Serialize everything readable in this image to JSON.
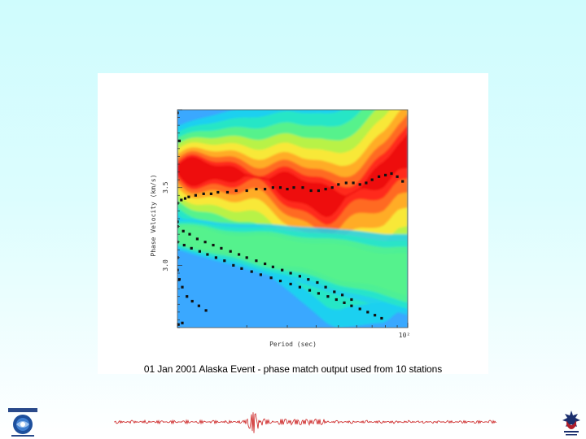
{
  "caption": "01 Jan 2001 Alaska Event - phase match output used from 10 stations",
  "chart_data": {
    "type": "heatmap",
    "title": "",
    "xlabel": "Period (sec)",
    "ylabel": "Phase Velocity (km/s)",
    "x_scale": "log",
    "xlim": [
      10,
      100
    ],
    "ylim": [
      2.6,
      4.0
    ],
    "x_ticks": [
      {
        "value": 100,
        "label": "10²"
      }
    ],
    "y_ticks": [
      {
        "value": 3.5,
        "label": "3.5"
      },
      {
        "value": 3.0,
        "label": "3.0"
      }
    ],
    "colormap": [
      "#3aa8ff",
      "#1ed0f0",
      "#28e6c6",
      "#56f28c",
      "#b8f246",
      "#f8e838",
      "#ffac26",
      "#ff6a20",
      "#ff2a1e",
      "#ee0808"
    ],
    "ridge_series": [
      {
        "x": [
          10,
          15,
          20,
          25,
          30,
          35,
          40,
          45,
          50,
          55,
          60,
          70,
          80,
          90,
          100
        ],
        "y": [
          3.62,
          3.6,
          3.58,
          3.55,
          3.52,
          3.48,
          3.45,
          3.42,
          3.42,
          3.45,
          3.48,
          3.55,
          3.6,
          3.7,
          3.75
        ]
      },
      {
        "x": [
          10,
          15,
          20,
          25,
          30,
          40,
          50,
          60,
          70,
          80,
          90,
          100
        ],
        "y": [
          3.2,
          3.15,
          3.12,
          3.1,
          3.08,
          3.05,
          3.02,
          3.0,
          2.98,
          2.96,
          2.95,
          2.94
        ]
      }
    ],
    "points": [
      {
        "x": 10.0,
        "y": 3.4
      },
      {
        "x": 10.4,
        "y": 3.42
      },
      {
        "x": 10.8,
        "y": 3.43
      },
      {
        "x": 11.2,
        "y": 3.44
      },
      {
        "x": 12.0,
        "y": 3.45
      },
      {
        "x": 13.0,
        "y": 3.46
      },
      {
        "x": 14.0,
        "y": 3.46
      },
      {
        "x": 15.0,
        "y": 3.47
      },
      {
        "x": 16.5,
        "y": 3.47
      },
      {
        "x": 18.0,
        "y": 3.48
      },
      {
        "x": 20.0,
        "y": 3.48
      },
      {
        "x": 22.0,
        "y": 3.49
      },
      {
        "x": 24.0,
        "y": 3.49
      },
      {
        "x": 26.0,
        "y": 3.5
      },
      {
        "x": 28.0,
        "y": 3.5
      },
      {
        "x": 30.0,
        "y": 3.49
      },
      {
        "x": 32.0,
        "y": 3.5
      },
      {
        "x": 35.0,
        "y": 3.5
      },
      {
        "x": 38.0,
        "y": 3.48
      },
      {
        "x": 41.0,
        "y": 3.48
      },
      {
        "x": 44.0,
        "y": 3.49
      },
      {
        "x": 47.0,
        "y": 3.5
      },
      {
        "x": 50.0,
        "y": 3.52
      },
      {
        "x": 54.0,
        "y": 3.53
      },
      {
        "x": 58.0,
        "y": 3.53
      },
      {
        "x": 62.0,
        "y": 3.52
      },
      {
        "x": 66.0,
        "y": 3.53
      },
      {
        "x": 70.0,
        "y": 3.55
      },
      {
        "x": 75.0,
        "y": 3.57
      },
      {
        "x": 80.0,
        "y": 3.58
      },
      {
        "x": 85.0,
        "y": 3.59
      },
      {
        "x": 90.0,
        "y": 3.57
      },
      {
        "x": 95.0,
        "y": 3.54
      },
      {
        "x": 10.0,
        "y": 3.25
      },
      {
        "x": 10.6,
        "y": 3.22
      },
      {
        "x": 11.3,
        "y": 3.2
      },
      {
        "x": 12.2,
        "y": 3.17
      },
      {
        "x": 13.2,
        "y": 3.15
      },
      {
        "x": 14.3,
        "y": 3.13
      },
      {
        "x": 15.5,
        "y": 3.11
      },
      {
        "x": 17.0,
        "y": 3.09
      },
      {
        "x": 18.5,
        "y": 3.07
      },
      {
        "x": 20.0,
        "y": 3.05
      },
      {
        "x": 22.0,
        "y": 3.03
      },
      {
        "x": 24.0,
        "y": 3.01
      },
      {
        "x": 26.0,
        "y": 2.99
      },
      {
        "x": 28.5,
        "y": 2.97
      },
      {
        "x": 31.0,
        "y": 2.95
      },
      {
        "x": 34.0,
        "y": 2.93
      },
      {
        "x": 37.0,
        "y": 2.91
      },
      {
        "x": 40.5,
        "y": 2.89
      },
      {
        "x": 44.0,
        "y": 2.86
      },
      {
        "x": 48.0,
        "y": 2.83
      },
      {
        "x": 52.0,
        "y": 2.81
      },
      {
        "x": 57.0,
        "y": 2.78
      },
      {
        "x": 10.0,
        "y": 3.15
      },
      {
        "x": 10.7,
        "y": 3.13
      },
      {
        "x": 11.5,
        "y": 3.11
      },
      {
        "x": 12.5,
        "y": 3.09
      },
      {
        "x": 13.5,
        "y": 3.07
      },
      {
        "x": 14.7,
        "y": 3.05
      },
      {
        "x": 16.0,
        "y": 3.03
      },
      {
        "x": 17.5,
        "y": 3.0
      },
      {
        "x": 19.0,
        "y": 2.98
      },
      {
        "x": 21.0,
        "y": 2.96
      },
      {
        "x": 23.0,
        "y": 2.94
      },
      {
        "x": 25.5,
        "y": 2.92
      },
      {
        "x": 28.0,
        "y": 2.9
      },
      {
        "x": 31.0,
        "y": 2.88
      },
      {
        "x": 34.0,
        "y": 2.86
      },
      {
        "x": 37.5,
        "y": 2.84
      },
      {
        "x": 41.0,
        "y": 2.82
      },
      {
        "x": 45.0,
        "y": 2.8
      },
      {
        "x": 49.0,
        "y": 2.78
      },
      {
        "x": 53.0,
        "y": 2.76
      },
      {
        "x": 57.0,
        "y": 2.74
      },
      {
        "x": 62.0,
        "y": 2.72
      },
      {
        "x": 67.0,
        "y": 2.7
      },
      {
        "x": 72.0,
        "y": 2.68
      },
      {
        "x": 77.0,
        "y": 2.66
      },
      {
        "x": 10.0,
        "y": 3.98
      },
      {
        "x": 10.2,
        "y": 3.8
      },
      {
        "x": 10.0,
        "y": 3.28
      },
      {
        "x": 10.0,
        "y": 3.05
      },
      {
        "x": 10.0,
        "y": 2.97
      },
      {
        "x": 10.2,
        "y": 2.91
      },
      {
        "x": 10.5,
        "y": 2.86
      },
      {
        "x": 11.0,
        "y": 2.8
      },
      {
        "x": 11.6,
        "y": 2.77
      },
      {
        "x": 12.4,
        "y": 2.74
      },
      {
        "x": 13.3,
        "y": 2.71
      },
      {
        "x": 10.1,
        "y": 2.62
      },
      {
        "x": 10.5,
        "y": 2.63
      }
    ]
  }
}
